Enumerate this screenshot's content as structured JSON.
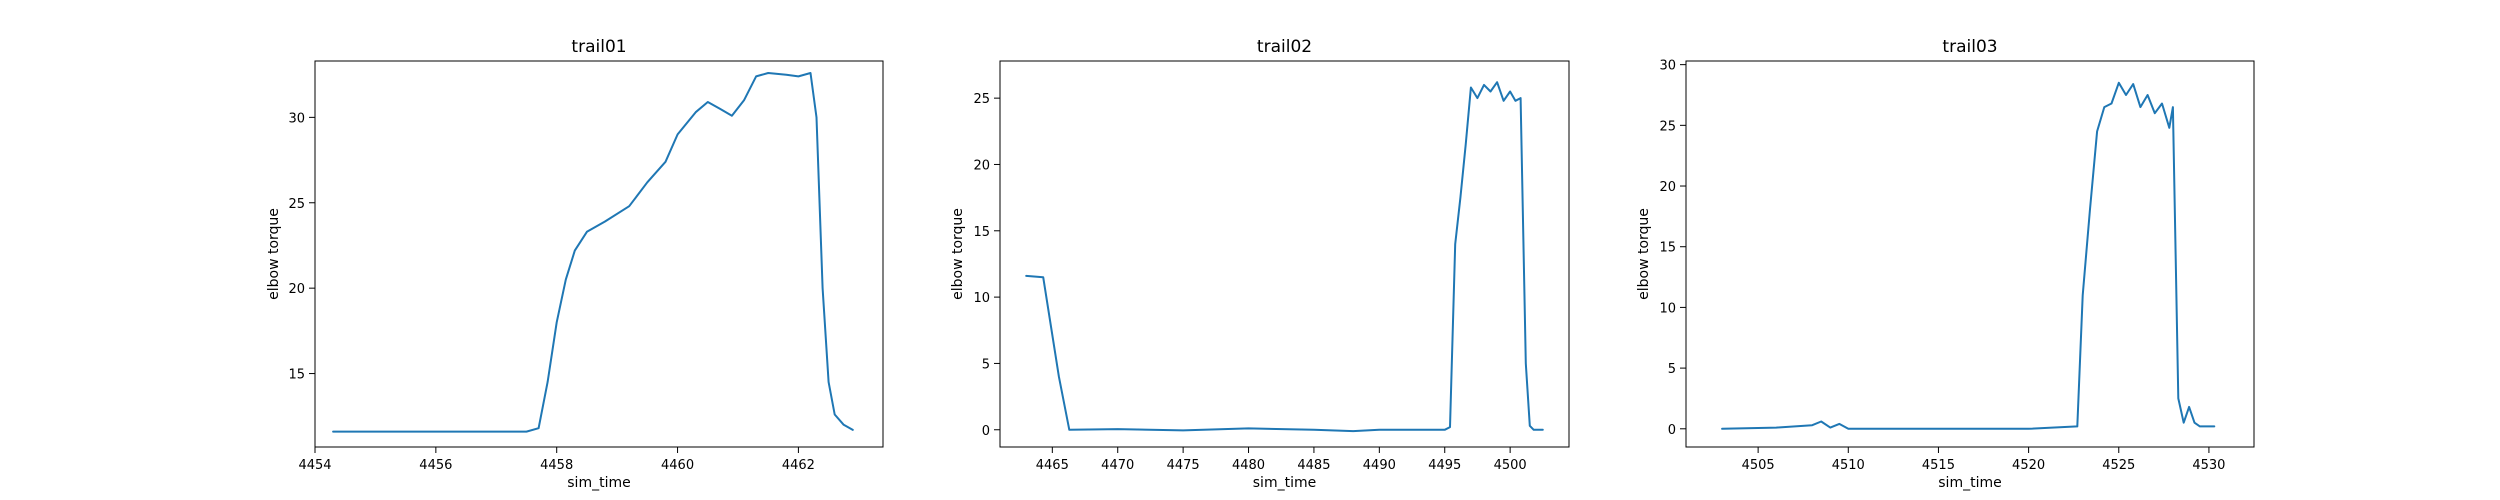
{
  "chart_data": [
    {
      "type": "line",
      "title": "trail01",
      "xlabel": "sim_time",
      "ylabel": "elbow torque",
      "color": "#1f77b4",
      "xlim": [
        4454.0,
        4463.4
      ],
      "ylim": [
        10.7,
        33.3
      ],
      "xticks": [
        4454,
        4456,
        4458,
        4460,
        4462
      ],
      "yticks": [
        15,
        20,
        25,
        30
      ],
      "x": [
        4454.3,
        4455.5,
        4456.5,
        4457.5,
        4457.7,
        4457.85,
        4458.0,
        4458.15,
        4458.3,
        4458.5,
        4458.8,
        4459.2,
        4459.5,
        4459.8,
        4460.0,
        4460.3,
        4460.5,
        4460.7,
        4460.9,
        4461.1,
        4461.3,
        4461.5,
        4461.8,
        4462.0,
        4462.2,
        4462.3,
        4462.4,
        4462.5,
        4462.6,
        4462.75,
        4462.9
      ],
      "y": [
        11.6,
        11.6,
        11.6,
        11.6,
        11.8,
        14.5,
        18.0,
        20.5,
        22.2,
        23.3,
        23.9,
        24.8,
        26.2,
        27.4,
        29.0,
        30.3,
        30.9,
        30.5,
        30.1,
        31.0,
        32.4,
        32.6,
        32.5,
        32.4,
        32.6,
        30.0,
        20.0,
        14.5,
        12.6,
        12.0,
        11.7
      ]
    },
    {
      "type": "line",
      "title": "trail02",
      "xlabel": "sim_time",
      "ylabel": "elbow torque",
      "color": "#1f77b4",
      "xlim": [
        4461.0,
        4504.5
      ],
      "ylim": [
        -1.3,
        27.8
      ],
      "xticks": [
        4465,
        4470,
        4475,
        4480,
        4485,
        4490,
        4495,
        4500
      ],
      "yticks": [
        0,
        5,
        10,
        15,
        20,
        25
      ],
      "x": [
        4463.0,
        4464.3,
        4465.5,
        4466.3,
        4470.0,
        4475.0,
        4480.0,
        4485.0,
        4488.0,
        4490.0,
        4495.0,
        4495.4,
        4495.8,
        4496.2,
        4496.6,
        4497.0,
        4497.5,
        4498.0,
        4498.5,
        4499.0,
        4499.5,
        4500.0,
        4500.4,
        4500.8,
        4501.2,
        4501.5,
        4501.8,
        4502.5
      ],
      "y": [
        11.6,
        11.5,
        4.0,
        0.0,
        0.05,
        -0.05,
        0.1,
        0.0,
        -0.1,
        0.0,
        0.0,
        0.2,
        14.0,
        17.5,
        21.5,
        25.8,
        25.0,
        26.0,
        25.5,
        26.2,
        24.8,
        25.5,
        24.8,
        25.0,
        5.0,
        0.3,
        0.0,
        0.0
      ]
    },
    {
      "type": "line",
      "title": "trail03",
      "xlabel": "sim_time",
      "ylabel": "elbow torque",
      "color": "#1f77b4",
      "xlim": [
        4501.0,
        4532.5
      ],
      "ylim": [
        -1.5,
        30.3
      ],
      "xticks": [
        4505,
        4510,
        4515,
        4520,
        4525,
        4530
      ],
      "yticks": [
        0,
        5,
        10,
        15,
        20,
        25,
        30
      ],
      "x": [
        4503.0,
        4506.0,
        4508.0,
        4508.5,
        4509.0,
        4509.5,
        4510.0,
        4515.0,
        4520.0,
        4522.7,
        4523.0,
        4523.4,
        4523.8,
        4524.2,
        4524.6,
        4525.0,
        4525.4,
        4525.8,
        4526.2,
        4526.6,
        4527.0,
        4527.4,
        4527.8,
        4528.0,
        4528.3,
        4528.6,
        4528.9,
        4529.2,
        4529.5,
        4530.3
      ],
      "y": [
        0.0,
        0.1,
        0.3,
        0.6,
        0.1,
        0.4,
        0.0,
        0.0,
        0.0,
        0.2,
        11.0,
        18.0,
        24.5,
        26.5,
        26.8,
        28.5,
        27.5,
        28.4,
        26.5,
        27.5,
        26.0,
        26.8,
        24.8,
        26.5,
        2.5,
        0.5,
        1.8,
        0.5,
        0.2,
        0.2
      ]
    }
  ]
}
